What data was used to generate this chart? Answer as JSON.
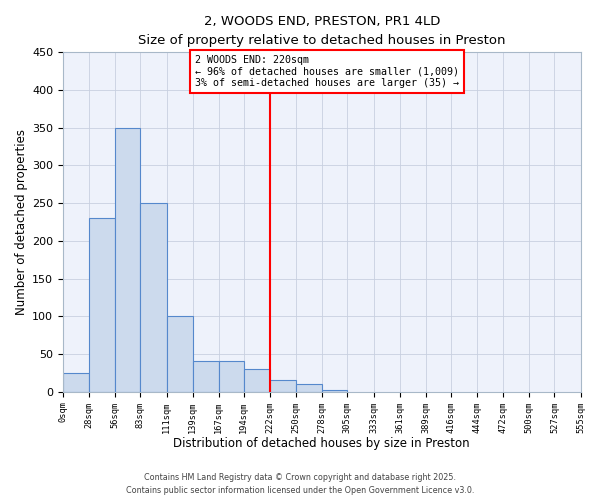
{
  "title": "2, WOODS END, PRESTON, PR1 4LD",
  "subtitle": "Size of property relative to detached houses in Preston",
  "xlabel": "Distribution of detached houses by size in Preston",
  "ylabel": "Number of detached properties",
  "bar_color": "#ccdaed",
  "bar_edge_color": "#5588cc",
  "background_color": "#eef2fb",
  "grid_color": "#c8d0e0",
  "vline_x": 222,
  "vline_color": "red",
  "annotation_line1": "2 WOODS END: 220sqm",
  "annotation_line2": "← 96% of detached houses are smaller (1,009)",
  "annotation_line3": "3% of semi-detached houses are larger (35) →",
  "bin_edges": [
    0,
    28,
    56,
    83,
    111,
    139,
    167,
    194,
    222,
    250,
    278,
    305,
    333,
    361,
    389,
    416,
    444,
    472,
    500,
    527,
    555
  ],
  "bin_counts": [
    25,
    230,
    350,
    250,
    100,
    40,
    40,
    30,
    15,
    10,
    2,
    0,
    0,
    0,
    0,
    0,
    0,
    0,
    0,
    0
  ],
  "ylim": [
    0,
    450
  ],
  "yticks": [
    0,
    50,
    100,
    150,
    200,
    250,
    300,
    350,
    400,
    450
  ],
  "footer1": "Contains HM Land Registry data © Crown copyright and database right 2025.",
  "footer2": "Contains public sector information licensed under the Open Government Licence v3.0."
}
